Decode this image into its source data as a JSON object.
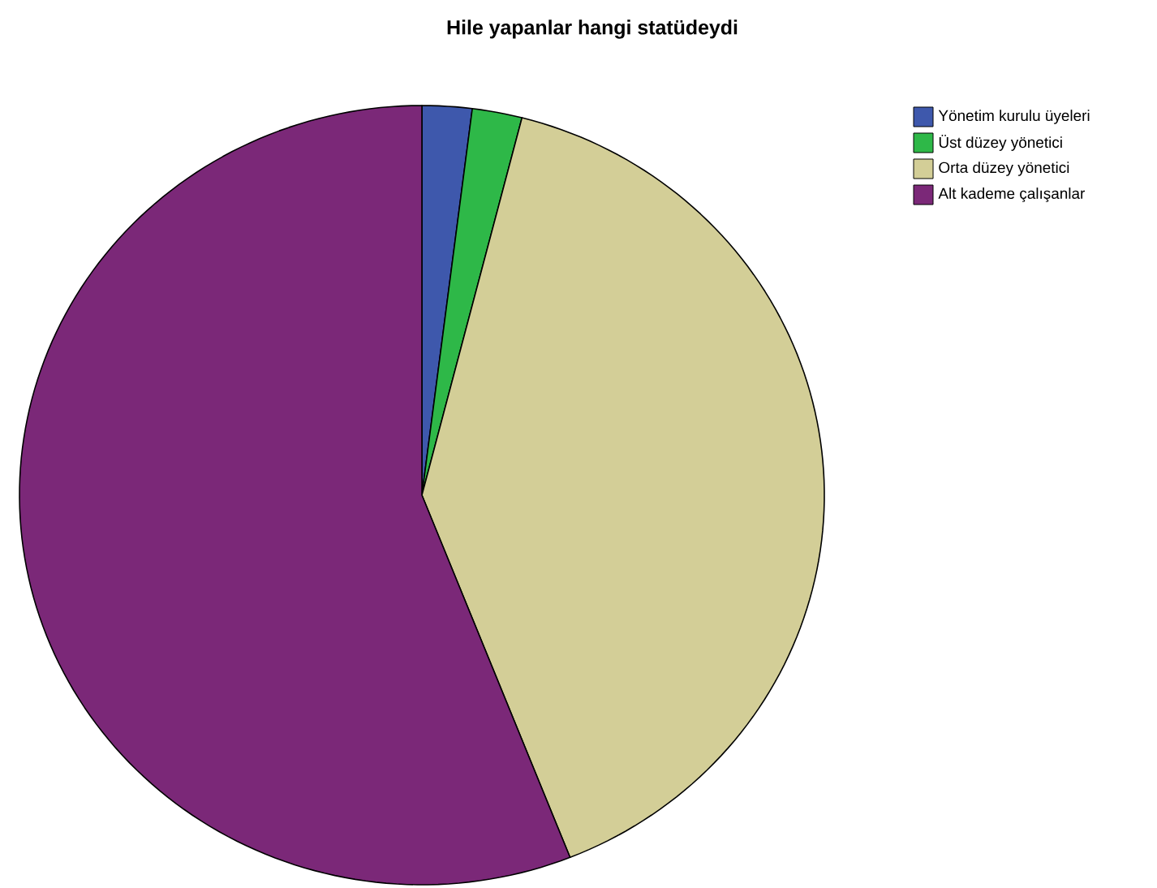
{
  "chart_data": {
    "type": "pie",
    "title": "Hile yapanlar hangi statüdeydi",
    "categories": [
      "Yönetim kurulu üyeleri",
      "Üst düzey yönetici",
      "Orta düzey yönetici",
      "Alt kademe çalışanlar"
    ],
    "values": [
      2,
      2,
      40,
      56
    ],
    "colors": [
      "#3e58ac",
      "#2eb848",
      "#d3ce97",
      "#7b2878"
    ],
    "legend": "top right"
  }
}
